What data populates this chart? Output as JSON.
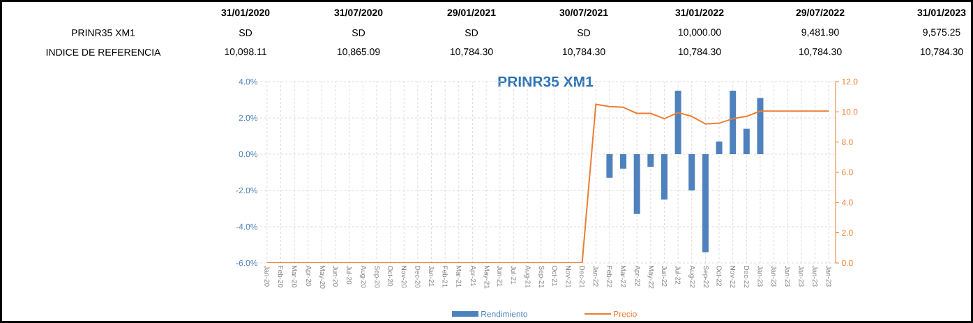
{
  "chart_data": {
    "type": "bar",
    "title": "PRINR35 XM1",
    "categories": [
      "Jan-20",
      "Feb-20",
      "Mar-20",
      "Apr-20",
      "May-20",
      "Jun-20",
      "Jul-20",
      "Aug-20",
      "Sep-20",
      "Oct-20",
      "Nov-20",
      "Dec-20",
      "Jan-21",
      "Feb-21",
      "Mar-21",
      "Apr-21",
      "May-21",
      "Jun-21",
      "Jul-21",
      "Aug-21",
      "Sep-21",
      "Oct-21",
      "Nov-21",
      "Dec-21",
      "Jan-22",
      "Feb-22",
      "Mar-22",
      "Apr-22",
      "May-22",
      "Jun-22",
      "Jul-22",
      "Aug-22",
      "Sep-22",
      "Oct-22",
      "Nov-22",
      "Dec-22",
      "Jan-23",
      "Jan-23",
      "Jan-23",
      "Jan-23",
      "Jan-23",
      "Jan-23"
    ],
    "series": [
      {
        "name": "Rendimiento",
        "color": "#4f81bd",
        "values": [
          null,
          null,
          null,
          null,
          null,
          null,
          null,
          null,
          null,
          null,
          null,
          null,
          null,
          null,
          null,
          null,
          null,
          null,
          null,
          null,
          null,
          null,
          null,
          null,
          null,
          -1.3,
          -0.8,
          -3.3,
          -0.7,
          -2.5,
          3.5,
          -2.0,
          -5.4,
          0.7,
          3.5,
          1.4,
          3.1,
          null,
          null,
          null,
          null,
          null
        ]
      },
      {
        "name": "Precio",
        "type": "line",
        "axis": "y2",
        "color": "#ed7d31",
        "values": [
          0,
          0,
          0,
          0,
          0,
          0,
          0,
          0,
          0,
          0,
          0,
          0,
          0,
          0,
          0,
          0,
          0,
          0,
          0,
          0,
          0,
          0,
          0,
          0,
          10.5,
          10.35,
          10.3,
          9.9,
          9.9,
          9.55,
          9.95,
          9.7,
          9.2,
          9.25,
          9.55,
          9.7,
          10.05,
          10.05,
          10.05,
          10.05,
          10.05,
          10.05
        ]
      }
    ],
    "ylim": [
      -6,
      4
    ],
    "yticks": [
      {
        "value": -6,
        "label": "-6.0%"
      },
      {
        "value": -4,
        "label": "-4.0%"
      },
      {
        "value": -2,
        "label": "-2.0%"
      },
      {
        "value": 0,
        "label": "0.0%"
      },
      {
        "value": 2,
        "label": "2.0%"
      },
      {
        "value": 4,
        "label": "4.0%"
      }
    ],
    "y2lim": [
      0,
      12
    ],
    "y2ticks": [
      {
        "value": 0,
        "label": "0.0"
      },
      {
        "value": 2,
        "label": "2.0"
      },
      {
        "value": 4,
        "label": "4.0"
      },
      {
        "value": 6,
        "label": "6.0"
      },
      {
        "value": 8,
        "label": "8.0"
      },
      {
        "value": 10,
        "label": "10.0"
      },
      {
        "value": 12,
        "label": "12.0"
      }
    ],
    "grid": true,
    "legend": "bottom",
    "annotations": [
      "31/01/2020",
      "31/07/2020",
      "29/01/2021",
      "30/07/2021",
      "31/01/2022",
      "29/07/2022",
      "31/01/2023",
      "PRINR35 XM1",
      "SD",
      "SD",
      "SD",
      "SD",
      "10,000.00",
      "9,481.90",
      "9,575.25",
      "INDICE DE REFERENCIA",
      "10,098.11",
      "10,865.09",
      "10,784.30",
      "10,784.30",
      "10,784.30",
      "10,784.30",
      "10,784.30"
    ]
  }
}
